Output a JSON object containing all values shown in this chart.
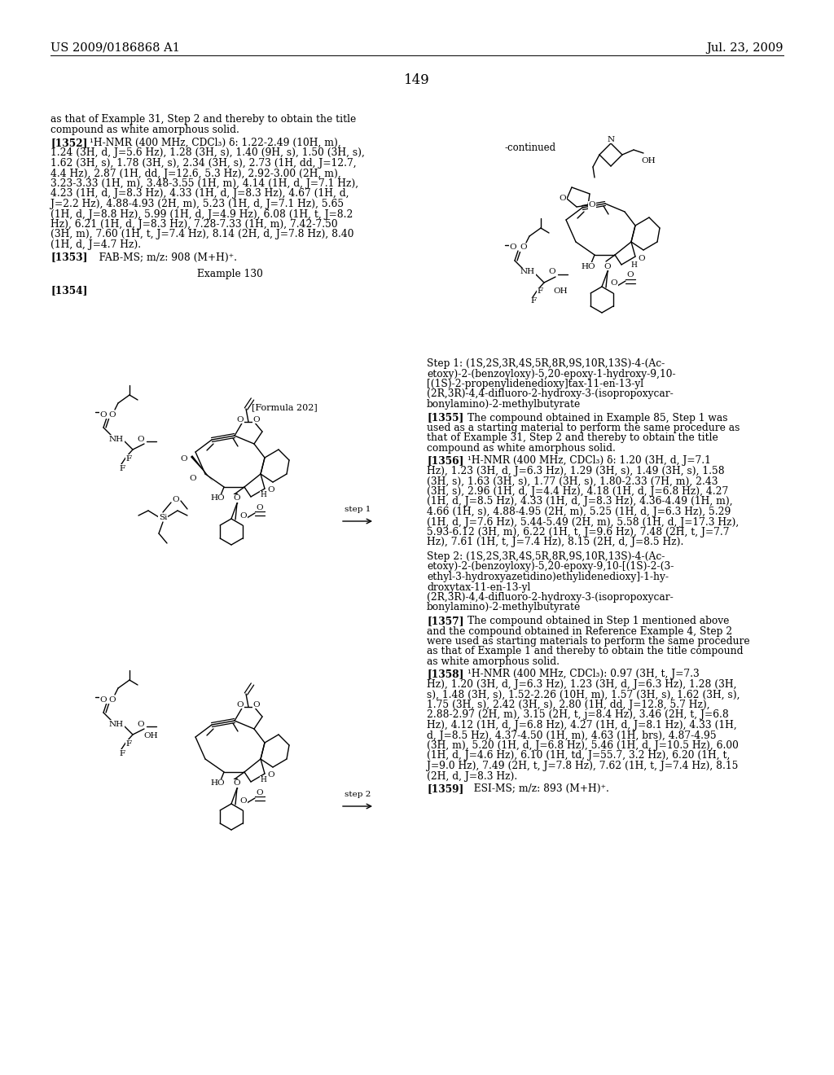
{
  "header_left": "US 2009/0186868 A1",
  "header_right": "Jul. 23, 2009",
  "page_number": "149",
  "bg": "#ffffff",
  "fg": "#000000",
  "fs_header": 10.5,
  "fs_body": 8.8,
  "fs_small": 7.5,
  "continued_label": "-continued",
  "para_intro_lines": [
    "as that of Example 31, Step 2 and thereby to obtain the title",
    "compound as white amorphous solid."
  ],
  "ref_1352_nmr": [
    "¹H-NMR (400 MHz, CDCl₃) δ: 1.22-2.49 (10H, m),",
    "1.24 (3H, d, J=5.6 Hz), 1.28 (3H, s), 1.40 (9H, s), 1.50 (3H, s),",
    "1.62 (3H, s), 1.78 (3H, s), 2.34 (3H, s), 2.73 (1H, dd, J=12.7,",
    "4.4 Hz), 2.87 (1H, dd, J=12.6, 5.3 Hz), 2.92-3.00 (2H, m),",
    "3.23-3.33 (1H, m), 3.48-3.55 (1H, m), 4.14 (1H, d, J=7.1 Hz),",
    "4.23 (1H, d, J=8.3 Hz), 4.33 (1H, d, J=8.3 Hz), 4.67 (1H, d,",
    "J=2.2 Hz), 4.88-4.93 (2H, m), 5.23 (1H, d, J=7.1 Hz), 5.65",
    "(1H, d, J=8.8 Hz), 5.99 (1H, d, J=4.9 Hz), 6.08 (1H, t, J=8.2",
    "Hz), 6.21 (1H, d, J=8.3 Hz), 7.28-7.33 (1H, m), 7.42-7.50",
    "(3H, m), 7.60 (1H, t, J=7.4 Hz), 8.14 (2H, d, J=7.8 Hz), 8.40",
    "(1H, d, J=4.7 Hz)."
  ],
  "ref_1353_text": "FAB-MS; m/z: 908 (M+H)⁺.",
  "example_130": "Example 130",
  "step1_title_lines": [
    "Step 1: (1S,2S,3R,4S,5R,8R,9S,10R,13S)-4-(Ac-",
    "etoxy)-2-(benzoyloxy)-5,20-epoxy-1-hydroxy-9,10-",
    "[(1S)-2-propenylidenedioxy]tax-11-en-13-yl"
  ],
  "step1_sub_lines": [
    "(2R,3R)-4,4-difluoro-2-hydroxy-3-(isopropoxycar-",
    "bonylamino)-2-methylbutyrate"
  ],
  "ref_1355_lines": [
    "The compound obtained in Example 85, Step 1 was",
    "used as a starting material to perform the same procedure as",
    "that of Example 31, Step 2 and thereby to obtain the title",
    "compound as white amorphous solid."
  ],
  "ref_1356_nmr": [
    "¹H-NMR (400 MHz, CDCl₃) δ: 1.20 (3H, d, J=7.1",
    "Hz), 1.23 (3H, d, J=6.3 Hz), 1.29 (3H, s), 1.49 (3H, s), 1.58",
    "(3H, s), 1.63 (3H, s), 1.77 (3H, s), 1.80-2.33 (7H, m), 2.43",
    "(3H, s), 2.96 (1H, d, J=4.4 Hz), 4.18 (1H, d, J=6.8 Hz), 4.27",
    "(1H, d, J=8.5 Hz), 4.33 (1H, d, J=8.3 Hz), 4.36-4.49 (1H, m),",
    "4.66 (1H, s), 4.88-4.95 (2H, m), 5.25 (1H, d, J=6.3 Hz), 5.29",
    "(1H, d, J=7.6 Hz), 5.44-5.49 (2H, m), 5.58 (1H, d, J=17.3 Hz),",
    "5.93-6.12 (3H, m), 6.22 (1H, t, J=9.6 Hz), 7.48 (2H, t, J=7.7",
    "Hz), 7.61 (1H, t, J=7.4 Hz), 8.15 (2H, d, J=8.5 Hz)."
  ],
  "step2_title_lines": [
    "Step 2: (1S,2S,3R,4S,5R,8R,9S,10R,13S)-4-(Ac-",
    "etoxy)-2-(benzoyloxy)-5,20-epoxy-9,10-[(1S)-2-(3-",
    "ethyl-3-hydroxyazetidino)ethylidenedioxy]-1-hy-",
    "droxytax-11-en-13-yl"
  ],
  "step2_sub_lines": [
    "(2R,3R)-4,4-difluoro-2-hydroxy-3-(isopropoxycar-",
    "bonylamino)-2-methylbutyrate"
  ],
  "ref_1357_lines": [
    "The compound obtained in Step 1 mentioned above",
    "and the compound obtained in Reference Example 4, Step 2",
    "were used as starting materials to perform the same procedure",
    "as that of Example 1 and thereby to obtain the title compound",
    "as white amorphous solid."
  ],
  "ref_1358_nmr": [
    "¹H-NMR (400 MHz, CDCl₃): 0.97 (3H, t, J=7.3",
    "Hz), 1.20 (3H, d, J=6.3 Hz), 1.23 (3H, d, J=6.3 Hz), 1.28 (3H,",
    "s), 1.48 (3H, s), 1.52-2.26 (10H, m), 1.57 (3H, s), 1.62 (3H, s),",
    "1.75 (3H, s), 2.42 (3H, s), 2.80 (1H, dd, J=12.8, 5.7 Hz),",
    "2.88-2.97 (2H, m), 3.15 (2H, t, j=8.4 Hz), 3.46 (2H, t, J=6.8",
    "Hz), 4.12 (1H, d, J=6.8 Hz), 4.27 (1H, d, J=8.1 Hz), 4.33 (1H,",
    "d, J=8.5 Hz), 4.37-4.50 (1H, m), 4.63 (1H, brs), 4.87-4.95",
    "(3H, m), 5.20 (1H, d, J=6.8 Hz), 5.46 (1H, d, J=10.5 Hz), 6.00",
    "(1H, d, J=4.6 Hz), 6.10 (1H, td, J=55.7, 3.2 Hz), 6.20 (1H, t,",
    "J=9.0 Hz), 7.49 (2H, t, J=7.8 Hz), 7.62 (1H, t, J=7.4 Hz), 8.15",
    "(2H, d, J=8.3 Hz)."
  ],
  "ref_1359_text": "ESI-MS; m/z: 893 (M+H)⁺."
}
